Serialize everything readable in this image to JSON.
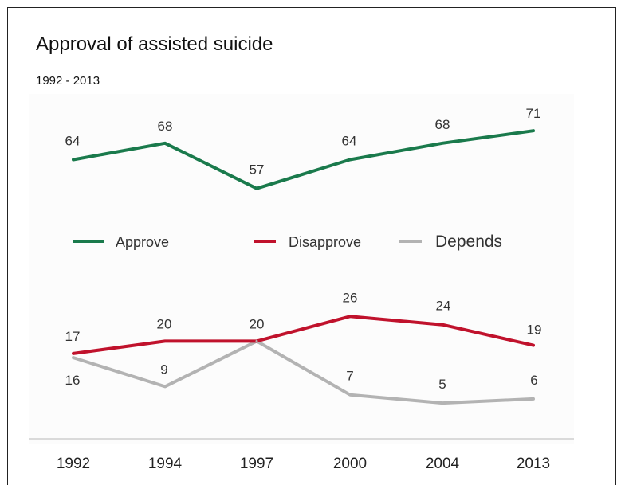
{
  "header": {
    "title": "Approval of assisted suicide",
    "subtitle": "1992 - 2013"
  },
  "colors": {
    "approve": "#1a7a4c",
    "disapprove": "#c0122c",
    "depends": "#b3b3b3"
  },
  "chart_data": {
    "type": "line",
    "title": "Approval of assisted suicide",
    "subtitle": "1992 - 2013",
    "xlabel": "",
    "ylabel": "",
    "categories": [
      "1992",
      "1994",
      "1997",
      "2000",
      "2004",
      "2013"
    ],
    "series": [
      {
        "name": "Approve",
        "values": [
          64,
          68,
          57,
          64,
          68,
          71
        ]
      },
      {
        "name": "Disapprove",
        "values": [
          17,
          20,
          20,
          26,
          24,
          19
        ]
      },
      {
        "name": "Depends",
        "values": [
          16,
          9,
          20,
          7,
          5,
          6
        ]
      }
    ],
    "ylim": [
      0,
      80
    ],
    "grid": false,
    "legend": "middle"
  }
}
